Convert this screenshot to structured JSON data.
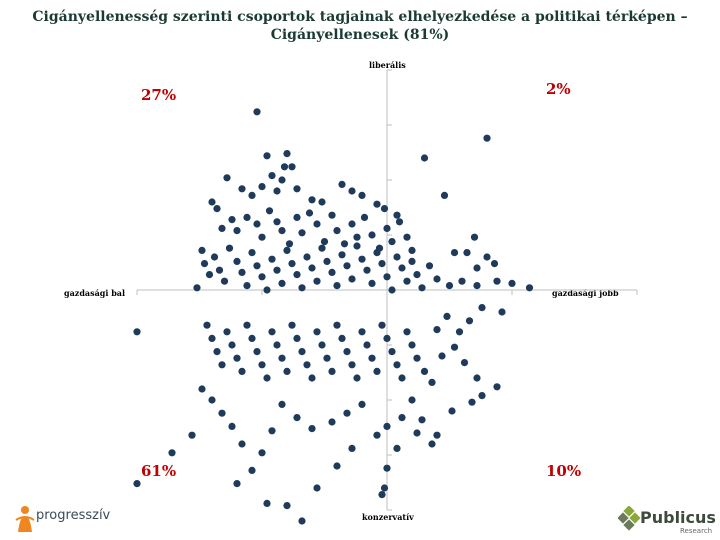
{
  "chart_data": {
    "type": "scatter",
    "title": "Cigányellenesség szerinti csoportok tagjainak elhelyezkedése a politikai térképen – Cigányellenesek (81%)",
    "axis_labels": {
      "top": "liberális",
      "bottom": "konzervatív",
      "left": "gazdasági bal",
      "right": "gazdasági jobb"
    },
    "quadrant_percentages": {
      "top_left": "27%",
      "top_right": "2%",
      "bottom_left": "61%",
      "bottom_right": "10%"
    },
    "xlim": [
      -1,
      1
    ],
    "ylim": [
      -1,
      1
    ],
    "grid": false,
    "axes_cross_at_origin": true,
    "x_ticks": [
      -1,
      -0.5,
      0,
      0.5,
      1
    ],
    "y_ticks": [
      -1,
      -0.75,
      -0.5,
      -0.25,
      0,
      0.25,
      0.5,
      0.75,
      1
    ],
    "point_color": "#1f3a5a",
    "series": [
      {
        "points": [
          [
            -0.52,
            0.81
          ],
          [
            -0.48,
            0.61
          ],
          [
            -0.4,
            0.62
          ],
          [
            -0.41,
            0.56
          ],
          [
            -0.38,
            0.56
          ],
          [
            -0.42,
            0.5
          ],
          [
            -0.46,
            0.52
          ],
          [
            -0.64,
            0.51
          ],
          [
            -0.58,
            0.46
          ],
          [
            -0.54,
            0.43
          ],
          [
            -0.5,
            0.47
          ],
          [
            -0.44,
            0.45
          ],
          [
            -0.36,
            0.46
          ],
          [
            -0.3,
            0.41
          ],
          [
            -0.26,
            0.4
          ],
          [
            -0.18,
            0.48
          ],
          [
            -0.14,
            0.45
          ],
          [
            -0.1,
            0.43
          ],
          [
            -0.04,
            0.39
          ],
          [
            -0.01,
            0.37
          ],
          [
            0.04,
            0.34
          ],
          [
            0.15,
            0.6
          ],
          [
            0.23,
            0.43
          ],
          [
            0.4,
            0.69
          ],
          [
            0.35,
            0.24
          ],
          [
            0.27,
            0.17
          ],
          [
            0.4,
            0.15
          ],
          [
            0.36,
            0.1
          ],
          [
            0.43,
            0.12
          ],
          [
            0.32,
            0.17
          ],
          [
            -0.7,
            0.4
          ],
          [
            -0.68,
            0.37
          ],
          [
            -0.66,
            0.28
          ],
          [
            -0.62,
            0.32
          ],
          [
            -0.6,
            0.27
          ],
          [
            -0.56,
            0.33
          ],
          [
            -0.52,
            0.3
          ],
          [
            -0.5,
            0.24
          ],
          [
            -0.47,
            0.36
          ],
          [
            -0.44,
            0.31
          ],
          [
            -0.42,
            0.27
          ],
          [
            -0.39,
            0.21
          ],
          [
            -0.36,
            0.33
          ],
          [
            -0.34,
            0.26
          ],
          [
            -0.31,
            0.35
          ],
          [
            -0.28,
            0.3
          ],
          [
            -0.25,
            0.22
          ],
          [
            -0.22,
            0.34
          ],
          [
            -0.2,
            0.27
          ],
          [
            -0.17,
            0.21
          ],
          [
            -0.14,
            0.3
          ],
          [
            -0.12,
            0.24
          ],
          [
            -0.09,
            0.33
          ],
          [
            -0.06,
            0.25
          ],
          [
            -0.03,
            0.19
          ],
          [
            0.0,
            0.28
          ],
          [
            0.02,
            0.22
          ],
          [
            0.05,
            0.31
          ],
          [
            0.08,
            0.24
          ],
          [
            0.1,
            0.18
          ],
          [
            -0.74,
            0.18
          ],
          [
            -0.73,
            0.12
          ],
          [
            -0.71,
            0.07
          ],
          [
            -0.76,
            0.01
          ],
          [
            -0.69,
            0.15
          ],
          [
            -0.67,
            0.09
          ],
          [
            -0.65,
            0.04
          ],
          [
            -0.63,
            0.19
          ],
          [
            -0.6,
            0.13
          ],
          [
            -0.58,
            0.08
          ],
          [
            -0.56,
            0.02
          ],
          [
            -0.54,
            0.17
          ],
          [
            -0.52,
            0.11
          ],
          [
            -0.5,
            0.06
          ],
          [
            -0.48,
            0.0
          ],
          [
            -0.46,
            0.14
          ],
          [
            -0.44,
            0.09
          ],
          [
            -0.42,
            0.03
          ],
          [
            -0.4,
            0.18
          ],
          [
            -0.38,
            0.12
          ],
          [
            -0.36,
            0.07
          ],
          [
            -0.34,
            0.01
          ],
          [
            -0.32,
            0.15
          ],
          [
            -0.3,
            0.1
          ],
          [
            -0.28,
            0.04
          ],
          [
            -0.26,
            0.19
          ],
          [
            -0.24,
            0.13
          ],
          [
            -0.22,
            0.08
          ],
          [
            -0.2,
            0.02
          ],
          [
            -0.18,
            0.16
          ],
          [
            -0.16,
            0.11
          ],
          [
            -0.14,
            0.05
          ],
          [
            -0.12,
            0.2
          ],
          [
            -0.1,
            0.14
          ],
          [
            -0.08,
            0.09
          ],
          [
            -0.06,
            0.03
          ],
          [
            -0.04,
            0.17
          ],
          [
            -0.02,
            0.12
          ],
          [
            0.0,
            0.06
          ],
          [
            0.02,
            0.0
          ],
          [
            0.04,
            0.15
          ],
          [
            0.06,
            0.1
          ],
          [
            0.08,
            0.04
          ],
          [
            0.1,
            0.13
          ],
          [
            0.12,
            0.07
          ],
          [
            0.14,
            0.01
          ],
          [
            0.17,
            0.11
          ],
          [
            0.2,
            0.05
          ],
          [
            0.25,
            0.02
          ],
          [
            0.3,
            0.04
          ],
          [
            0.36,
            0.02
          ],
          [
            0.44,
            0.04
          ],
          [
            0.5,
            0.03
          ],
          [
            0.57,
            0.01
          ],
          [
            0.46,
            -0.1
          ],
          [
            0.38,
            -0.08
          ],
          [
            0.33,
            -0.14
          ],
          [
            0.29,
            -0.19
          ],
          [
            0.24,
            -0.12
          ],
          [
            0.2,
            -0.18
          ],
          [
            -1.0,
            -0.19
          ],
          [
            -0.72,
            -0.16
          ],
          [
            -0.7,
            -0.22
          ],
          [
            -0.68,
            -0.28
          ],
          [
            -0.66,
            -0.34
          ],
          [
            -0.64,
            -0.19
          ],
          [
            -0.62,
            -0.25
          ],
          [
            -0.6,
            -0.31
          ],
          [
            -0.58,
            -0.37
          ],
          [
            -0.56,
            -0.16
          ],
          [
            -0.54,
            -0.22
          ],
          [
            -0.52,
            -0.28
          ],
          [
            -0.5,
            -0.34
          ],
          [
            -0.48,
            -0.4
          ],
          [
            -0.46,
            -0.19
          ],
          [
            -0.44,
            -0.25
          ],
          [
            -0.42,
            -0.31
          ],
          [
            -0.4,
            -0.37
          ],
          [
            -0.38,
            -0.16
          ],
          [
            -0.36,
            -0.22
          ],
          [
            -0.34,
            -0.28
          ],
          [
            -0.32,
            -0.34
          ],
          [
            -0.3,
            -0.4
          ],
          [
            -0.28,
            -0.19
          ],
          [
            -0.26,
            -0.25
          ],
          [
            -0.24,
            -0.31
          ],
          [
            -0.22,
            -0.37
          ],
          [
            -0.2,
            -0.16
          ],
          [
            -0.18,
            -0.22
          ],
          [
            -0.16,
            -0.28
          ],
          [
            -0.14,
            -0.34
          ],
          [
            -0.12,
            -0.4
          ],
          [
            -0.1,
            -0.19
          ],
          [
            -0.08,
            -0.25
          ],
          [
            -0.06,
            -0.31
          ],
          [
            -0.04,
            -0.37
          ],
          [
            -0.02,
            -0.16
          ],
          [
            0.0,
            -0.22
          ],
          [
            0.02,
            -0.28
          ],
          [
            0.04,
            -0.34
          ],
          [
            0.06,
            -0.4
          ],
          [
            0.08,
            -0.19
          ],
          [
            0.1,
            -0.25
          ],
          [
            0.12,
            -0.31
          ],
          [
            0.15,
            -0.37
          ],
          [
            0.18,
            -0.42
          ],
          [
            0.22,
            -0.3
          ],
          [
            0.27,
            -0.26
          ],
          [
            0.31,
            -0.33
          ],
          [
            0.36,
            -0.4
          ],
          [
            0.1,
            -0.5
          ],
          [
            0.06,
            -0.58
          ],
          [
            0.12,
            -0.65
          ],
          [
            0.0,
            -0.62
          ],
          [
            -0.04,
            -0.66
          ],
          [
            -0.1,
            -0.52
          ],
          [
            -0.16,
            -0.56
          ],
          [
            -0.22,
            -0.6
          ],
          [
            -0.3,
            -0.63
          ],
          [
            -0.36,
            -0.58
          ],
          [
            -0.42,
            -0.52
          ],
          [
            -0.46,
            -0.64
          ],
          [
            -0.5,
            -0.74
          ],
          [
            -0.54,
            -0.82
          ],
          [
            -0.58,
            -0.7
          ],
          [
            -0.62,
            -0.62
          ],
          [
            -0.66,
            -0.56
          ],
          [
            -0.7,
            -0.5
          ],
          [
            -0.74,
            -0.45
          ],
          [
            -0.78,
            -0.66
          ],
          [
            -0.86,
            -0.74
          ],
          [
            -1.0,
            -0.88
          ],
          [
            -0.6,
            -0.88
          ],
          [
            -0.48,
            -0.97
          ],
          [
            -0.4,
            -0.98
          ],
          [
            -0.28,
            -0.9
          ],
          [
            -0.2,
            -0.8
          ],
          [
            -0.14,
            -0.72
          ],
          [
            -0.34,
            -1.05
          ],
          [
            -0.02,
            -0.93
          ],
          [
            -0.01,
            -0.9
          ],
          [
            0.0,
            -0.81
          ],
          [
            0.04,
            -0.72
          ],
          [
            0.2,
            -0.66
          ],
          [
            0.14,
            -0.59
          ],
          [
            0.26,
            -0.55
          ],
          [
            0.34,
            -0.51
          ],
          [
            0.38,
            -0.48
          ],
          [
            0.44,
            -0.44
          ],
          [
            0.18,
            -0.7
          ]
        ]
      }
    ]
  },
  "logos": {
    "left_text": "progresszív",
    "right_text": "Publicus",
    "right_sub": "Research"
  }
}
